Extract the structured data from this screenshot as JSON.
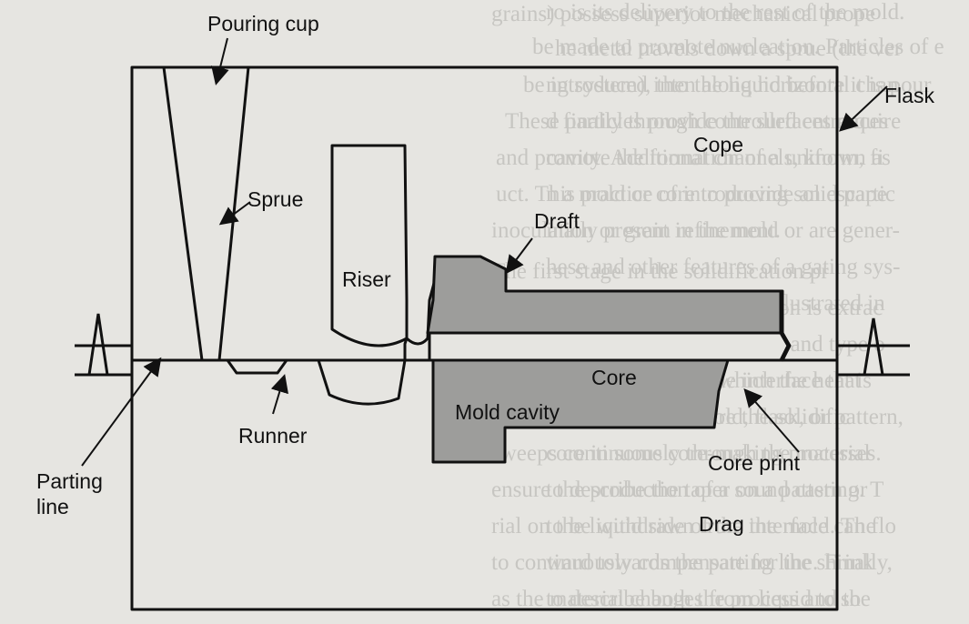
{
  "diagram": {
    "labels": {
      "pouring_cup": "Pouring cup",
      "flask": "Flask",
      "cope": "Cope",
      "sprue": "Sprue",
      "draft": "Draft",
      "riser": "Riser",
      "core": "Core",
      "mold_cavity": "Mold cavity",
      "runner": "Runner",
      "parting_line_1": "Parting",
      "parting_line_2": "line",
      "core_print": "Core print",
      "drag": "Drag"
    },
    "colors": {
      "line": "#111111",
      "cavity_fill": "#9d9d9b",
      "background": "#e6e5e1"
    }
  }
}
